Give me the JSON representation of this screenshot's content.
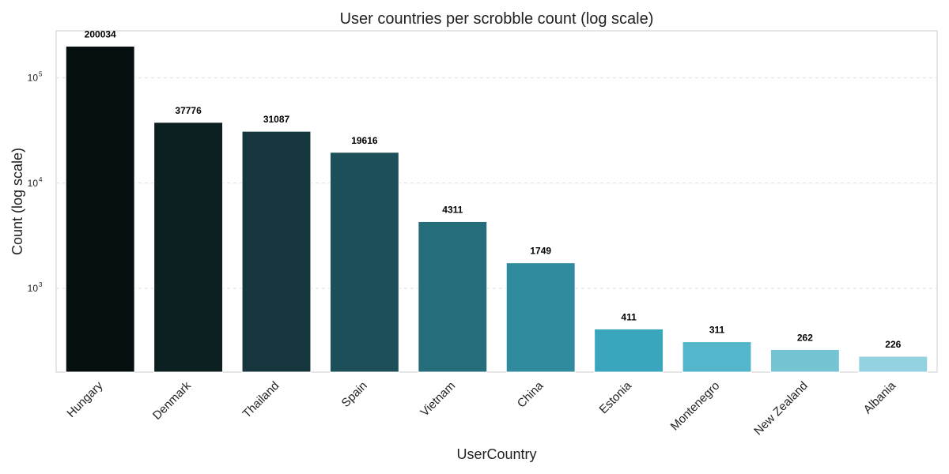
{
  "chart_data": {
    "type": "bar",
    "title": "User countries per scrobble count (log scale)",
    "xlabel": "UserCountry",
    "ylabel": "Count (log scale)",
    "yscale": "log",
    "ylim": [
      160,
      280000
    ],
    "yticks": [
      {
        "value": 1000,
        "base": "10",
        "exp": "3"
      },
      {
        "value": 10000,
        "base": "10",
        "exp": "4"
      },
      {
        "value": 100000,
        "base": "10",
        "exp": "5"
      }
    ],
    "grid": true,
    "categories": [
      "Hungary",
      "Denmark",
      "Thailand",
      "Spain",
      "Vietnam",
      "China",
      "Estonia",
      "Montenegro",
      "New Zealand",
      "Albania"
    ],
    "values": [
      200034,
      37776,
      31087,
      19616,
      4311,
      1749,
      411,
      311,
      262,
      226
    ],
    "value_labels": [
      "200034",
      "37776",
      "31087",
      "19616",
      "4311",
      "1749",
      "411",
      "311",
      "262",
      "226"
    ],
    "colors": [
      "#050f0f",
      "#0c1f21",
      "#16363d",
      "#1d4f5a",
      "#266d7c",
      "#318b9e",
      "#3aa6bd",
      "#54b6ca",
      "#74c4d4",
      "#93d2e0"
    ]
  }
}
